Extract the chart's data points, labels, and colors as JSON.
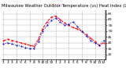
{
  "title": "Milwaukee Weather Outdoor Temperature (vs) Heat Index (Last 24 Hours)",
  "title_fontsize": 3.8,
  "background_color": "#ffffff",
  "grid_color": "#aaaaaa",
  "temp_color": "#ff0000",
  "heat_color": "#0000cc",
  "ylabel_right": [
    "65",
    "60",
    "55",
    "50",
    "45",
    "40",
    "35",
    "30"
  ],
  "ylim": [
    26,
    68
  ],
  "yticks_right": [
    65,
    60,
    55,
    50,
    45,
    40,
    35,
    30
  ],
  "hours": [
    0,
    1,
    2,
    3,
    4,
    5,
    6,
    7,
    8,
    9,
    10,
    11,
    12,
    13,
    14,
    15,
    16,
    17,
    18,
    19,
    20,
    21,
    22,
    23
  ],
  "temp_values": [
    42,
    43,
    42,
    41,
    40,
    39,
    38,
    37,
    43,
    52,
    58,
    62,
    63,
    60,
    57,
    55,
    53,
    52,
    50,
    47,
    44,
    41,
    38,
    40
  ],
  "heat_values": [
    39,
    40,
    39,
    38,
    37,
    36,
    35,
    35,
    41,
    50,
    55,
    59,
    61,
    58,
    55,
    56,
    58,
    54,
    50,
    46,
    42,
    40,
    38,
    42
  ],
  "xtick_labels": [
    "1",
    "2",
    "3",
    "4",
    "5",
    "6",
    "7",
    "8",
    "9",
    "10",
    "11",
    "12",
    "1",
    "2",
    "3",
    "4",
    "5",
    "6",
    "7",
    "8",
    "9",
    "10",
    "11",
    "12"
  ],
  "xtick_fontsize": 3.2,
  "ytick_fontsize": 3.2,
  "linewidth": 0.7,
  "markersize": 1.0,
  "vline_positions": [
    0,
    3,
    6,
    9,
    12,
    15,
    18,
    21,
    23
  ]
}
